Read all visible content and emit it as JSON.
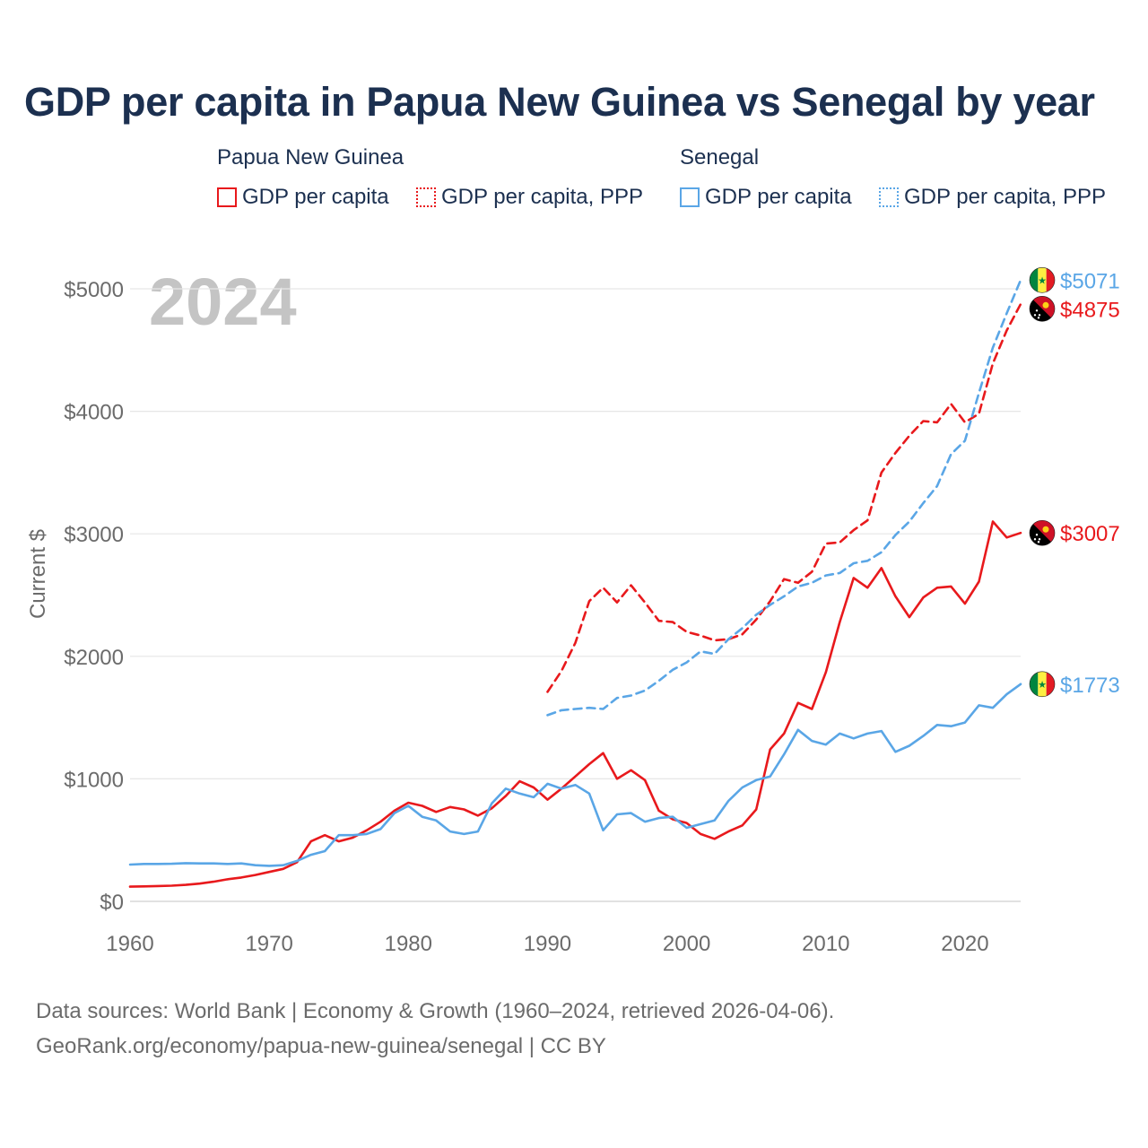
{
  "title": "GDP per capita in Papua New Guinea vs Senegal by year",
  "year_label": "2024",
  "legend": {
    "groups": [
      {
        "name": "Papua New Guinea",
        "color": "#e8191c",
        "items": [
          {
            "label": "GDP per capita",
            "style": "solid"
          },
          {
            "label": "GDP per capita, PPP",
            "style": "dotted"
          }
        ]
      },
      {
        "name": "Senegal",
        "color": "#5aa6e6",
        "items": [
          {
            "label": "GDP per capita",
            "style": "solid"
          },
          {
            "label": "GDP per capita, PPP",
            "style": "dotted"
          }
        ]
      }
    ]
  },
  "sources": {
    "line1": "Data sources: World Bank | Economy & Growth (1960–2024, retrieved 2026-04-06).",
    "line2": "GeoRank.org/economy/papua-new-guinea/senegal | CC BY"
  },
  "chart_data": {
    "type": "line",
    "ylabel": "Current $",
    "xlim": [
      1960,
      2024
    ],
    "ylim": [
      0,
      5000
    ],
    "xticks": [
      1960,
      1970,
      1980,
      1990,
      2000,
      2010,
      2020
    ],
    "yticks": [
      0,
      1000,
      2000,
      3000,
      4000,
      5000
    ],
    "ytick_labels": [
      "$0",
      "$1000",
      "$2000",
      "$3000",
      "$4000",
      "$5000"
    ],
    "grid": true,
    "series": [
      {
        "name": "Papua New Guinea GDP per capita",
        "color": "#e8191c",
        "dash": "solid",
        "end_label": "$3007",
        "flag": "papua-new-guinea",
        "x_start": 1960,
        "values": [
          120,
          122,
          125,
          128,
          135,
          145,
          160,
          180,
          195,
          215,
          240,
          265,
          320,
          490,
          540,
          490,
          520,
          580,
          650,
          740,
          805,
          780,
          730,
          770,
          750,
          700,
          760,
          860,
          980,
          930,
          830,
          920,
          1020,
          1120,
          1210,
          1000,
          1070,
          990,
          740,
          670,
          640,
          550,
          510,
          570,
          620,
          750,
          1240,
          1370,
          1620,
          1570,
          1870,
          2280,
          2640,
          2560,
          2720,
          2490,
          2320,
          2480,
          2560,
          2570,
          2430,
          2610,
          3100,
          2970,
          3007
        ]
      },
      {
        "name": "Papua New Guinea GDP per capita, PPP",
        "color": "#e8191c",
        "dash": "dashed",
        "end_label": "$4875",
        "flag": "papua-new-guinea",
        "x_start": 1990,
        "values": [
          1710,
          1880,
          2110,
          2450,
          2560,
          2440,
          2580,
          2440,
          2290,
          2280,
          2200,
          2170,
          2130,
          2140,
          2180,
          2300,
          2450,
          2630,
          2600,
          2690,
          2920,
          2930,
          3030,
          3110,
          3500,
          3660,
          3800,
          3920,
          3910,
          4060,
          3910,
          3980,
          4390,
          4660,
          4875
        ]
      },
      {
        "name": "Senegal GDP per capita",
        "color": "#5aa6e6",
        "dash": "solid",
        "end_label": "$1773",
        "flag": "senegal",
        "x_start": 1960,
        "values": [
          300,
          305,
          305,
          307,
          312,
          310,
          310,
          305,
          310,
          295,
          290,
          295,
          330,
          380,
          410,
          540,
          540,
          550,
          590,
          720,
          780,
          690,
          660,
          570,
          550,
          570,
          800,
          920,
          880,
          850,
          960,
          920,
          950,
          880,
          580,
          710,
          720,
          650,
          680,
          690,
          600,
          630,
          660,
          820,
          930,
          990,
          1020,
          1200,
          1400,
          1310,
          1280,
          1370,
          1330,
          1370,
          1390,
          1220,
          1270,
          1350,
          1440,
          1430,
          1460,
          1600,
          1580,
          1690,
          1773
        ]
      },
      {
        "name": "Senegal GDP per capita, PPP",
        "color": "#5aa6e6",
        "dash": "dashed",
        "end_label": "$5071",
        "flag": "senegal",
        "x_start": 1990,
        "values": [
          1520,
          1560,
          1570,
          1580,
          1570,
          1660,
          1680,
          1720,
          1800,
          1890,
          1950,
          2040,
          2020,
          2140,
          2230,
          2340,
          2420,
          2490,
          2570,
          2600,
          2660,
          2680,
          2760,
          2780,
          2850,
          2990,
          3100,
          3250,
          3390,
          3650,
          3760,
          4150,
          4520,
          4800,
          5071
        ]
      }
    ]
  }
}
